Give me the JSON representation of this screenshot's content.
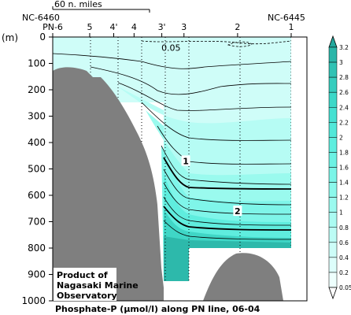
{
  "chart_data": {
    "type": "heatmap",
    "title": "Phosphate-P (μmol/l) along PN line, 06-04",
    "ylabel": "(m)",
    "ylim": [
      0,
      1000
    ],
    "yticks": [
      "0",
      "100",
      "200",
      "300",
      "400",
      "500",
      "600",
      "700",
      "800",
      "900",
      "1000"
    ],
    "scale_label": "60 n. miles",
    "station_ids": {
      "left": "NC-6460",
      "right": "NC-6445"
    },
    "stations": [
      {
        "label": "PN-6",
        "pos": 0.0
      },
      {
        "label": "5",
        "pos": 1.0
      },
      {
        "label": "4'",
        "pos": 1.65
      },
      {
        "label": "4",
        "pos": 2.2
      },
      {
        "label": "3'",
        "pos": 2.95
      },
      {
        "label": "3",
        "pos": 3.55
      },
      {
        "label": "2",
        "pos": 5.0
      },
      {
        "label": "1",
        "pos": 6.45
      }
    ],
    "contour_labels": [
      {
        "text": "0.05",
        "x": 3.2,
        "y": 40
      },
      {
        "text": "1",
        "x": 3.6,
        "y": 470
      },
      {
        "text": "2",
        "x": 5.0,
        "y": 660
      }
    ],
    "colorbar": {
      "levels": [
        "3.2",
        "3",
        "2.8",
        "2.6",
        "2.4",
        "2.2",
        "2",
        "1.8",
        "1.6",
        "1.4",
        "1.2",
        "1",
        "0.8",
        "0.6",
        "0.4",
        "0.2",
        "0.05"
      ],
      "colors": [
        "#23a89d",
        "#2ab6a9",
        "#30c2b4",
        "#36cdbe",
        "#3cd8c8",
        "#45e1d2",
        "#51e8d9",
        "#5eeedf",
        "#6cf2e4",
        "#7bf5e8",
        "#8bf8ec",
        "#9bfaef",
        "#abfbf2",
        "#bcfcf5",
        "#cdfdf8",
        "#ddfefb",
        "#eefffd"
      ]
    },
    "credit": [
      "Product of",
      "Nagasaki Marine",
      "Observatory"
    ]
  }
}
